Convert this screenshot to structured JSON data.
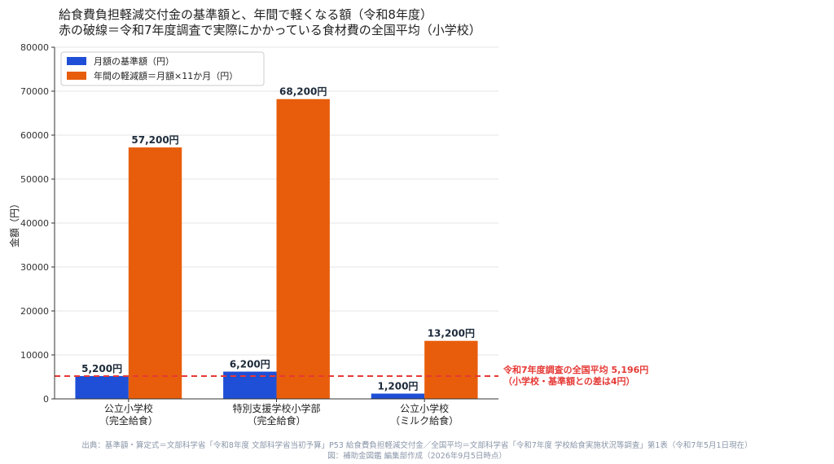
{
  "title": {
    "line1": "給食費負担軽減交付金の基準額と、年間で軽くなる額（令和8年度）",
    "line2": "赤の破線＝令和7年度調査で実際にかかっている食材費の全国平均（小学校）"
  },
  "chart_data": {
    "type": "bar",
    "ylabel": "金額（円）",
    "ylim": [
      0,
      80000
    ],
    "yticks": [
      0,
      10000,
      20000,
      30000,
      40000,
      50000,
      60000,
      70000,
      80000
    ],
    "grid": true,
    "legend_position": "top-left",
    "categories": [
      {
        "line1": "公立小学校",
        "line2": "（完全給食）"
      },
      {
        "line1": "特別支援学校小学部",
        "line2": "（完全給食）"
      },
      {
        "line1": "公立小学校",
        "line2": "（ミルク給食）"
      }
    ],
    "series": [
      {
        "name": "月額の基準額（円）",
        "color": "#1f4fd6",
        "values": [
          5200,
          6200,
          1200
        ],
        "labels": [
          "5,200円",
          "6,200円",
          "1,200円"
        ]
      },
      {
        "name": "年間の軽減額＝月額×11か月（円）",
        "color": "#e85d0c",
        "values": [
          57200,
          68200,
          13200
        ],
        "labels": [
          "57,200円",
          "68,200円",
          "13,200円"
        ]
      }
    ],
    "reference_line": {
      "value": 5196,
      "color": "#e53935",
      "label_line1": "令和7年度調査の全国平均 5,196円",
      "label_line2": "（小学校・基準額との差は4円）"
    }
  },
  "footer": {
    "line1": "出典：基準額・算定式＝文部科学省「令和8年度 文部科学省当初予算」P53 給食費負担軽減交付金／全国平均＝文部科学省「令和7年度 学校給食実施状況等調査」第1表（令和7年5月1日現在）",
    "line2": "図：補助金図鑑 編集部作成（2026年9月5日時点）"
  }
}
